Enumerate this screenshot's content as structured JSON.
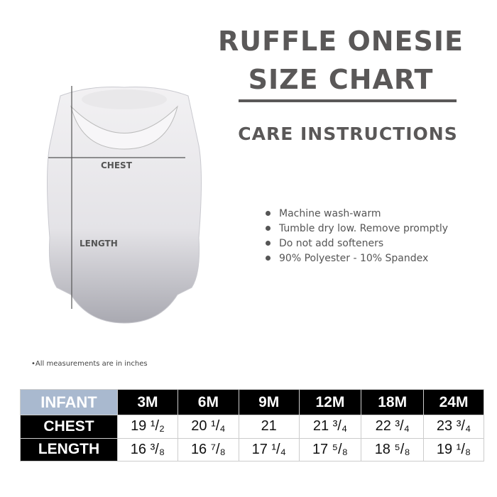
{
  "title_line1": "RUFFLE ONESIE",
  "title_line2": "SIZE CHART",
  "care_heading": "CARE INSTRUCTIONS",
  "care_items": [
    "Machine wash-warm",
    "Tumble dry low. Remove promptly",
    "Do not add softeners",
    "90% Polyester - 10% Spandex"
  ],
  "diagram": {
    "chest_label": "CHEST",
    "length_label": "LENGTH"
  },
  "note": "•All measurements are in inches",
  "table": {
    "corner": "INFANT",
    "sizes": [
      "3M",
      "6M",
      "9M",
      "12M",
      "18M",
      "24M"
    ],
    "rows": [
      {
        "label": "CHEST",
        "values": [
          "19 ¹/₂",
          "20 ¹/₄",
          "21",
          "21 ³/₄",
          "22 ³/₄",
          "23 ³/₄"
        ]
      },
      {
        "label": "LENGTH",
        "values": [
          "16 ³/₈",
          "16 ⁷/₈",
          "17 ¹/₄",
          "17 ⁵/₈",
          "18 ⁵/₈",
          "19 ¹/₈"
        ]
      }
    ]
  },
  "colors": {
    "title": "#5a5858",
    "infant_header": "#a9b9cf",
    "header_bg": "#000000"
  }
}
